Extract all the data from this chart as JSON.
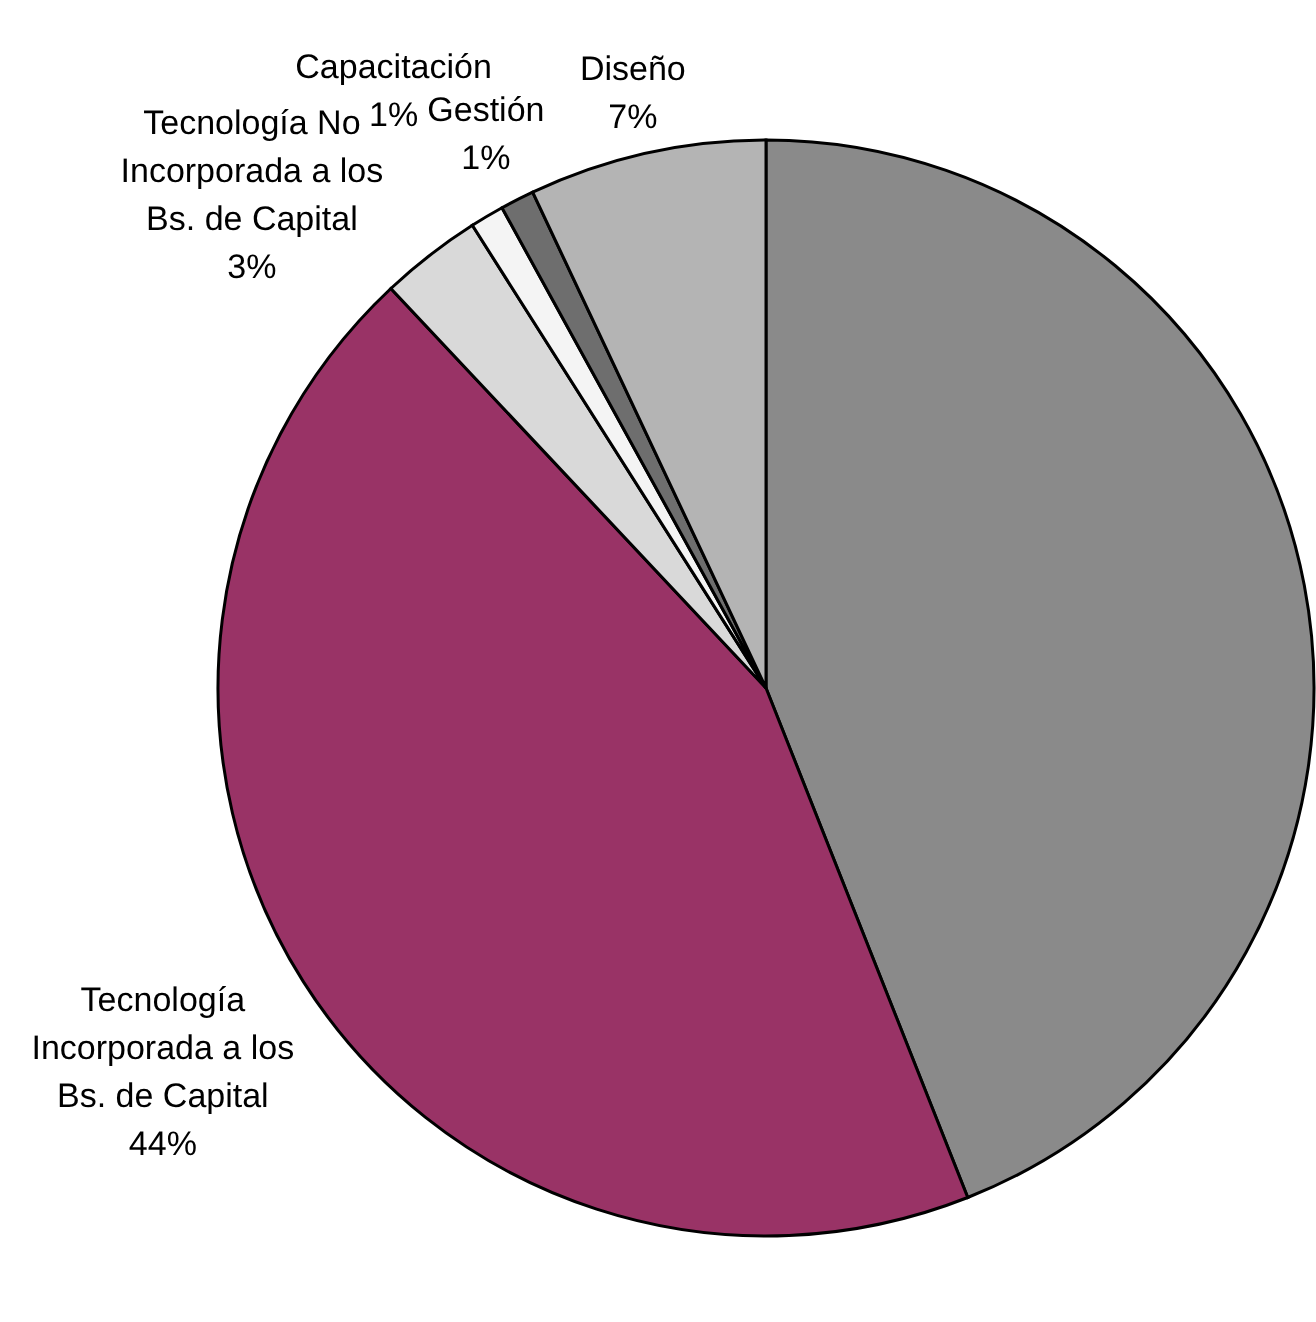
{
  "chart_data": {
    "type": "pie",
    "categories": [
      null,
      "Tecnología Incorporada a los Bs. de Capital",
      "Tecnología No Incorporada a los Bs. de Capital",
      "Capacitación",
      "Gestión",
      "Diseño"
    ],
    "values": [
      44,
      44,
      3,
      1,
      1,
      7
    ],
    "colors": [
      "#8a8a8a",
      "#993366",
      "#d9d9d9",
      "#f4f4f4",
      "#6e6e6e",
      "#b4b4b4"
    ],
    "value_labels": [
      null,
      "44%",
      "3%",
      "1%",
      "1%",
      "7%"
    ]
  }
}
